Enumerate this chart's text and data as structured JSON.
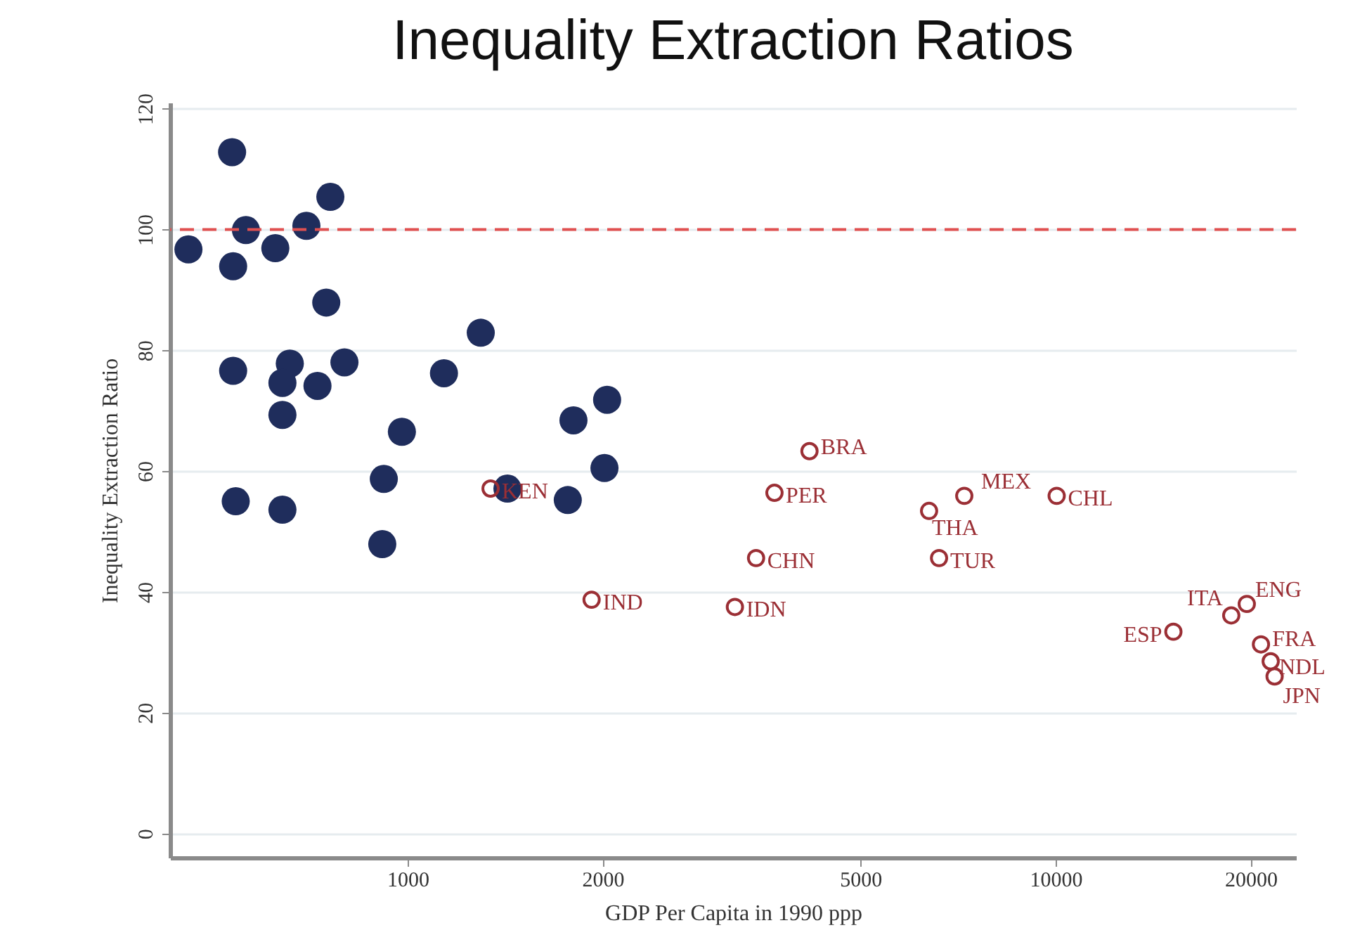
{
  "chart_data": {
    "type": "scatter",
    "title": "Inequality Extraction Ratios",
    "xlabel": "GDP Per Capita in 1990 ppp",
    "ylabel": "Inequality Extraction Ratio",
    "log": "x",
    "xlim": [
      430,
      23500
    ],
    "xticks": [
      1000,
      2000,
      5000,
      10000,
      20000
    ],
    "ylim": [
      -4,
      121
    ],
    "yticks": [
      0,
      20,
      40,
      60,
      80,
      100,
      120
    ],
    "grid": "y",
    "marker": "circle",
    "series": [
      {
        "color": "#1f2d5c",
        "x": [
          459,
          536,
          538,
          563,
          625,
          698,
          760,
          749,
          538,
          658,
          641,
          726,
          799,
          641,
          543,
          641,
          919,
          980,
          914,
          1138,
          1297,
          1426,
          1767,
          1803,
          2032,
          2013
        ],
        "values": [
          96.7,
          112.8,
          93.9,
          99.9,
          96.9,
          100.6,
          105.4,
          87.9,
          76.6,
          77.8,
          74.6,
          74.1,
          78.0,
          69.3,
          55.0,
          53.6,
          58.7,
          66.5,
          47.9,
          76.2,
          82.9,
          57.1,
          55.2,
          68.4,
          71.8,
          60.5
        ]
      },
      {
        "color": "#9b2f35",
        "x": [
          1343,
          1923,
          3200,
          3450,
          3683,
          4171,
          6380,
          6610,
          7230,
          10040,
          15200,
          18670,
          19730,
          20750,
          21480,
          21780
        ],
        "values": [
          57.1,
          38.7,
          37.5,
          45.6,
          56.4,
          63.3,
          53.4,
          45.6,
          55.9,
          55.9,
          33.4,
          36.1,
          38.0,
          31.3,
          28.5,
          26.0
        ]
      }
    ],
    "ref_lines": [
      {
        "axis": "y",
        "value": 100,
        "color": "#e05050",
        "line_style": "dashed"
      }
    ],
    "annotations": [
      {
        "text": "KEN",
        "x": 1343,
        "y": 57.1
      },
      {
        "text": "IND",
        "x": 1923,
        "y": 38.7
      },
      {
        "text": "IDN",
        "x": 3200,
        "y": 37.5
      },
      {
        "text": "CHN",
        "x": 3450,
        "y": 45.6
      },
      {
        "text": "PER",
        "x": 3683,
        "y": 56.4
      },
      {
        "text": "BRA",
        "x": 4171,
        "y": 63.3
      },
      {
        "text": "THA",
        "x": 6380,
        "y": 53.4
      },
      {
        "text": "TUR",
        "x": 6610,
        "y": 45.6
      },
      {
        "text": "MEX",
        "x": 7230,
        "y": 55.9
      },
      {
        "text": "CHL",
        "x": 10040,
        "y": 55.9
      },
      {
        "text": "ESP",
        "x": 15200,
        "y": 33.4
      },
      {
        "text": "ITA",
        "x": 18670,
        "y": 36.1
      },
      {
        "text": "ENG",
        "x": 19730,
        "y": 38.0
      },
      {
        "text": "FRA",
        "x": 20750,
        "y": 31.3
      },
      {
        "text": "NDL",
        "x": 21480,
        "y": 28.5
      },
      {
        "text": "JPN",
        "x": 21780,
        "y": 26.0
      }
    ]
  }
}
